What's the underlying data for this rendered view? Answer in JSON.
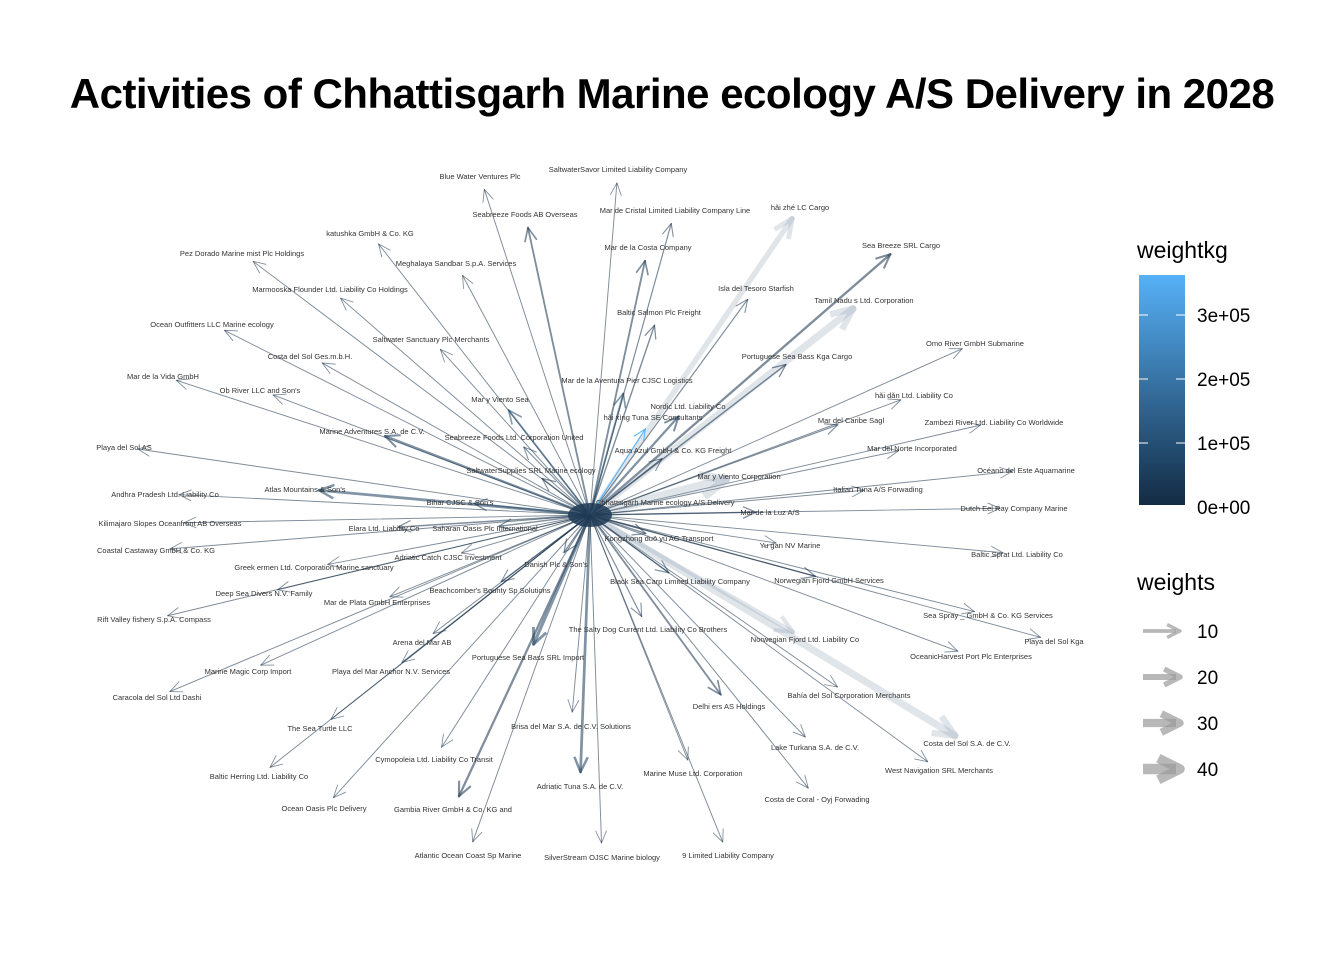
{
  "title": "Activities of Chhattisgarh Marine ecology A/S Delivery in 2028",
  "chart_data": {
    "type": "network",
    "center_node": "Chhattisgarh Marine ecology A/S Delivery",
    "legend": {
      "color_title": "weightkg",
      "color_ticks": [
        "0e+00",
        "1e+05",
        "2e+05",
        "3e+05"
      ],
      "color_low": "#132B43",
      "color_high": "#56B1F7",
      "size_title": "weights",
      "size_ticks": [
        "10",
        "20",
        "30",
        "40"
      ]
    },
    "nodes": [
      {
        "name": "Blue Water Ventures Plc",
        "weight": 2,
        "weightkg": 5000
      },
      {
        "name": "SaltwaterSavor Limited Liability Company",
        "weight": 2,
        "weightkg": 5000
      },
      {
        "name": "Seabreeze Foods AB Overseas",
        "weight": 6,
        "weightkg": 15000
      },
      {
        "name": "Mar de Cristal Limited Liability Company Line",
        "weight": 3,
        "weightkg": 8000
      },
      {
        "name": "hǎi zhé LC Cargo",
        "weight": 22,
        "weightkg": 20000
      },
      {
        "name": "Sea Breeze SRL Cargo",
        "weight": 8,
        "weightkg": 12000
      },
      {
        "name": "katushka GmbH & Co. KG",
        "weight": 2,
        "weightkg": 5000
      },
      {
        "name": "Mar de la Costa Company",
        "weight": 6,
        "weightkg": 15000
      },
      {
        "name": "Pez Dorado Marine mist Plc Holdings",
        "weight": 2,
        "weightkg": 5000
      },
      {
        "name": "Meghalaya  Sandbar S.p.A. Services",
        "weight": 2,
        "weightkg": 5000
      },
      {
        "name": "Isla del Tesoro Starfish",
        "weight": 3,
        "weightkg": 8000
      },
      {
        "name": "Tamil Nadu s Ltd. Corporation",
        "weight": 30,
        "weightkg": 22000
      },
      {
        "name": "Marmooska Flounder Ltd. Liability Co Holdings",
        "weight": 2,
        "weightkg": 5000
      },
      {
        "name": "Baltic Salmon Plc Freight",
        "weight": 4,
        "weightkg": 10000
      },
      {
        "name": "Ocean Outfitters LLC Marine ecology",
        "weight": 2,
        "weightkg": 5000
      },
      {
        "name": "Omo River  GmbH Submarine",
        "weight": 2,
        "weightkg": 5000
      },
      {
        "name": "Saltwater Sanctuary Plc Merchants",
        "weight": 2,
        "weightkg": 5000
      },
      {
        "name": "Costa del Sol Ges.m.b.H.",
        "weight": 2,
        "weightkg": 5000
      },
      {
        "name": "Portuguese Sea Bass Kga Cargo",
        "weight": 4,
        "weightkg": 8000
      },
      {
        "name": "Mar de la Vida GmbH",
        "weight": 2,
        "weightkg": 5000
      },
      {
        "name": "Mar de la Aventura Pier CJSC Logistics",
        "weight": 6,
        "weightkg": 60000
      },
      {
        "name": "Ob River LLC and Son's",
        "weight": 2,
        "weightkg": 5000
      },
      {
        "name": "hǎi dǎn Ltd. Liability Co",
        "weight": 2,
        "weightkg": 5000
      },
      {
        "name": "Mar y Viento Sea",
        "weight": 6,
        "weightkg": 80000
      },
      {
        "name": "Nordic  Ltd. Liability Co",
        "weight": 8,
        "weightkg": 40000
      },
      {
        "name": "hǎi xìng Tuna SE Consultants",
        "weight": 3,
        "weightkg": 360000
      },
      {
        "name": "Mar del Caribe Sagl",
        "weight": 3,
        "weightkg": 8000
      },
      {
        "name": "Zambezi River   Ltd. Liability Co Worldwide",
        "weight": 2,
        "weightkg": 5000
      },
      {
        "name": "Marine Adventures S.A. de C.V.",
        "weight": 8,
        "weightkg": 40000
      },
      {
        "name": "Seabreeze Foods Ltd. Corporation United",
        "weight": 3,
        "weightkg": 30000
      },
      {
        "name": "Playa del Sol AS",
        "weight": 2,
        "weightkg": 5000
      },
      {
        "name": "Aqua Azul GmbH & Co. KG Freight",
        "weight": 3,
        "weightkg": 20000
      },
      {
        "name": "Mar del Norte Incorporated",
        "weight": 2,
        "weightkg": 5000
      },
      {
        "name": "SaltwaterSupplies SRL Marine ecology",
        "weight": 4,
        "weightkg": 30000
      },
      {
        "name": "Mar y Viento Corporation",
        "weight": 40,
        "weightkg": 25000
      },
      {
        "name": "Océano del Este Aquamarine",
        "weight": 2,
        "weightkg": 5000
      },
      {
        "name": "Atlas Mountains  & Son's",
        "weight": 10,
        "weightkg": 50000
      },
      {
        "name": "Italian Tuna A/S Forwading",
        "weight": 2,
        "weightkg": 5000
      },
      {
        "name": "Andhra Pradesh  Ltd. Liability Co",
        "weight": 2,
        "weightkg": 5000
      },
      {
        "name": "Bihar   CJSC & Son's",
        "weight": 5,
        "weightkg": 60000
      },
      {
        "name": "Mar de la Luz A/S",
        "weight": 4,
        "weightkg": 20000
      },
      {
        "name": "Dutch Eel Ray Company Marine",
        "weight": 2,
        "weightkg": 5000
      },
      {
        "name": "Kilimajaro Slopes   Oceanfront AB Overseas",
        "weight": 2,
        "weightkg": 5000
      },
      {
        "name": "Elara Ltd. Liability Co",
        "weight": 4,
        "weightkg": 20000
      },
      {
        "name": "Saharan Oasis  Plc International",
        "weight": 4,
        "weightkg": 30000
      },
      {
        "name": "Kongzhong duō yú AG Transport",
        "weight": 4,
        "weightkg": 20000
      },
      {
        "name": "Yu gan  NV Marine",
        "weight": 2,
        "weightkg": 5000
      },
      {
        "name": "Coastal Castaway GmbH & Co. KG",
        "weight": 2,
        "weightkg": 5000
      },
      {
        "name": "Adriatic Catch CJSC Investment",
        "weight": 2,
        "weightkg": 5000
      },
      {
        "name": "Baltic Sprat Ltd. Liability Co",
        "weight": 2,
        "weightkg": 5000
      },
      {
        "name": "Greek ermen Ltd. Corporation Marine sanctuary",
        "weight": 2,
        "weightkg": 5000
      },
      {
        "name": "Danish  Plc & Son's",
        "weight": 4,
        "weightkg": 30000
      },
      {
        "name": "Black Sea Carp Limited Liability Company",
        "weight": 4,
        "weightkg": 50000
      },
      {
        "name": "Norwegian Fjord  GmbH Services",
        "weight": 4,
        "weightkg": 20000
      },
      {
        "name": "Deep Sea Divers N.V. Family",
        "weight": 2,
        "weightkg": 5000
      },
      {
        "name": "Mar de Plata GmbH Enterprises",
        "weight": 2,
        "weightkg": 5000
      },
      {
        "name": "Beachcomber's Bounty Sp Solutions",
        "weight": 3,
        "weightkg": 20000
      },
      {
        "name": "Rift Valley fishery S.p.A. Compass",
        "weight": 2,
        "weightkg": 5000
      },
      {
        "name": "Sea Spray _ GmbH & Co. KG Services",
        "weight": 2,
        "weightkg": 5000
      },
      {
        "name": "The Salty Dog Current Ltd. Liability Co Brothers",
        "weight": 3,
        "weightkg": 20000
      },
      {
        "name": "Playa del Sol Kga",
        "weight": 2,
        "weightkg": 5000
      },
      {
        "name": "Norwegian Fjord  Ltd. Liability Co",
        "weight": 18,
        "weightkg": 40000
      },
      {
        "name": "Arena del Mar AB",
        "weight": 2,
        "weightkg": 5000
      },
      {
        "name": "OceanicHarvest Port Plc Enterprises",
        "weight": 2,
        "weightkg": 5000
      },
      {
        "name": "Marine Magic Corp Import",
        "weight": 2,
        "weightkg": 5000
      },
      {
        "name": "Playa del Mar Anchor N.V. Services",
        "weight": 2,
        "weightkg": 5000
      },
      {
        "name": "Portuguese Sea Bass SRL Import",
        "weight": 12,
        "weightkg": 60000
      },
      {
        "name": "Bahía del Sol Corporation Merchants",
        "weight": 2,
        "weightkg": 5000
      },
      {
        "name": "Caracola del Sol Ltd Dashi",
        "weight": 2,
        "weightkg": 5000
      },
      {
        "name": "Delhi ers AS Holdings",
        "weight": 6,
        "weightkg": 20000
      },
      {
        "name": "The Sea Turtle LLC",
        "weight": 2,
        "weightkg": 5000
      },
      {
        "name": "Brisa del Mar S.A. de C.V. Solutions",
        "weight": 2,
        "weightkg": 5000
      },
      {
        "name": "Costa del Sol S.A. de C.V.",
        "weight": 30,
        "weightkg": 22000
      },
      {
        "name": "Lake Turkana  S.A. de C.V.",
        "weight": 2,
        "weightkg": 5000
      },
      {
        "name": "Cymopoleia Ltd. Liability Co Transit",
        "weight": 2,
        "weightkg": 5000
      },
      {
        "name": "Baltic Herring Ltd. Liability Co",
        "weight": 2,
        "weightkg": 5000
      },
      {
        "name": "Marine Muse Ltd. Corporation",
        "weight": 2,
        "weightkg": 5000
      },
      {
        "name": "West Navigation SRL Merchants",
        "weight": 2,
        "weightkg": 5000
      },
      {
        "name": "Adriatic Tuna S.A. de C.V.",
        "weight": 10,
        "weightkg": 40000
      },
      {
        "name": "Ocean Oasis Plc Delivery",
        "weight": 2,
        "weightkg": 5000
      },
      {
        "name": "Gambia River   GmbH & Co. KG and",
        "weight": 8,
        "weightkg": 20000
      },
      {
        "name": "Costa de Coral - Oyj Forwading",
        "weight": 2,
        "weightkg": 5000
      },
      {
        "name": "Atlantic Ocean Coast  Sp Marine",
        "weight": 2,
        "weightkg": 5000
      },
      {
        "name": "SilverStream OJSC Marine biology",
        "weight": 2,
        "weightkg": 5000
      },
      {
        "name": "9 Limited Liability Company",
        "weight": 2,
        "weightkg": 5000
      }
    ]
  }
}
